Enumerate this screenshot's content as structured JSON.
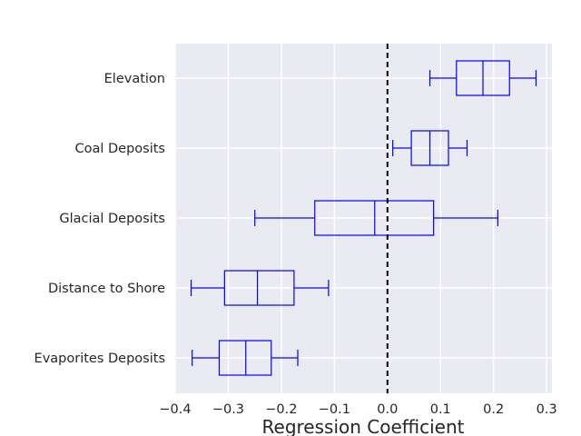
{
  "chart_data": {
    "type": "boxplot",
    "orientation": "horizontal",
    "title": "",
    "xlabel": "Regression Coefficient",
    "ylabel": "",
    "xlim": [
      -0.4,
      0.31
    ],
    "xticks": [
      -0.4,
      -0.3,
      -0.2,
      -0.1,
      0.0,
      0.1,
      0.2,
      0.3
    ],
    "xtick_labels": [
      "−0.4",
      "−0.3",
      "−0.2",
      "−0.1",
      "0.0",
      "0.1",
      "0.2",
      "0.3"
    ],
    "grid": true,
    "reference_line": {
      "x": 0,
      "style": "dashed",
      "color": "#000000"
    },
    "box_color": "#0000ff",
    "background_color": "#eaeaf2",
    "categories": [
      "Elevation",
      "Coal Deposits",
      "Glacial Deposits",
      "Distance to Shore",
      "Evaporites Deposits"
    ],
    "boxes": [
      {
        "label": "Elevation",
        "whislo": 0.08,
        "q1": 0.13,
        "med": 0.18,
        "q3": 0.23,
        "whishi": 0.28
      },
      {
        "label": "Coal Deposits",
        "whislo": 0.01,
        "q1": 0.045,
        "med": 0.08,
        "q3": 0.115,
        "whishi": 0.15
      },
      {
        "label": "Glacial Deposits",
        "whislo": -0.25,
        "q1": -0.137,
        "med": -0.024,
        "q3": 0.087,
        "whishi": 0.208
      },
      {
        "label": "Distance to Shore",
        "whislo": -0.37,
        "q1": -0.307,
        "med": -0.245,
        "q3": -0.176,
        "whishi": -0.111
      },
      {
        "label": "Evaporites Deposits",
        "whislo": -0.368,
        "q1": -0.317,
        "med": -0.267,
        "q3": -0.219,
        "whishi": -0.169
      }
    ]
  }
}
